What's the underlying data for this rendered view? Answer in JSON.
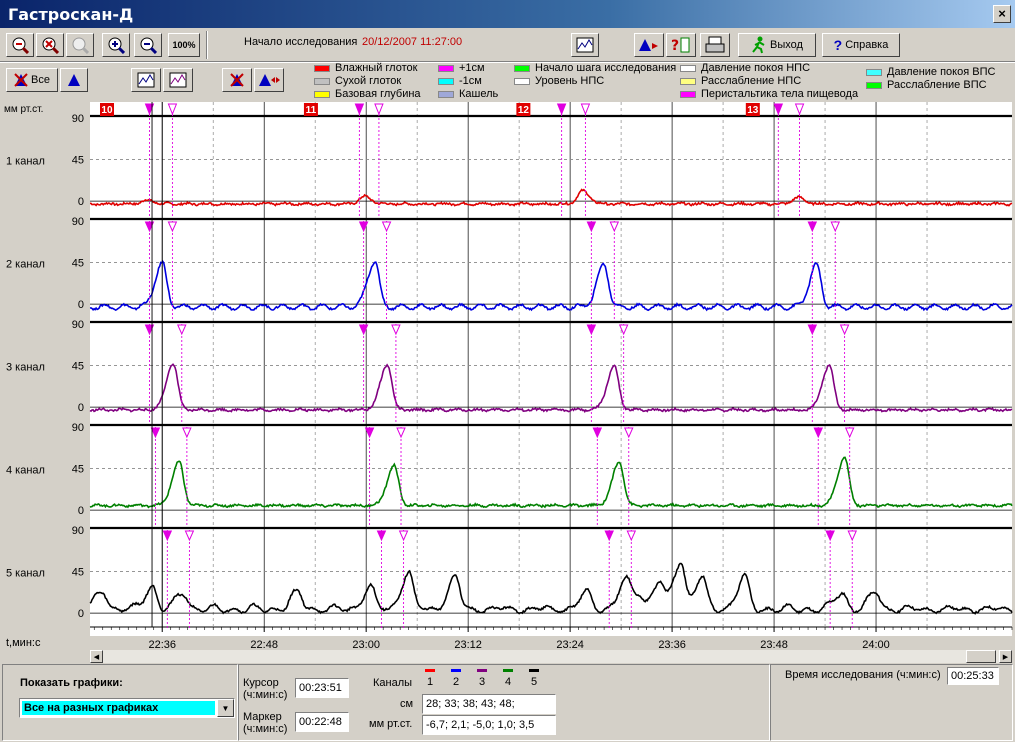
{
  "window": {
    "title": "Гастроскан-Д",
    "close": "×"
  },
  "toolbar": {
    "zoom_buttons": [
      "zoom-in-x",
      "zoom-out-x",
      "zoom-reset",
      "zoom-in-y",
      "zoom-out-y"
    ],
    "zoom_100": "100%",
    "start_label": "Начало исследования",
    "start_value": "20/12/2007 11:27:00",
    "exit_label": "Выход",
    "help_label": "Справка"
  },
  "toolbar2": {
    "all_label": "Все"
  },
  "legend": [
    {
      "label": "Влажный глоток",
      "color": "#ff0000"
    },
    {
      "label": "Сухой глоток",
      "color": "#c0c0c0"
    },
    {
      "label": "Базовая глубина",
      "color": "#ffff00"
    },
    {
      "label": "+1см",
      "color": "#ff00ff"
    },
    {
      "label": "-1см",
      "color": "#00ffff"
    },
    {
      "label": "Кашель",
      "color": "#9fa8d8"
    },
    {
      "label": "Начало шага исследования",
      "color": "#00ff00"
    },
    {
      "label": "Уровень НПС",
      "color": "#ffffff"
    },
    {
      "label": "Давление покоя НПС",
      "color": "#ffffff"
    },
    {
      "label": "Расслабление НПС",
      "color": "#ffff80"
    },
    {
      "label": "Перистальтика тела пищевода",
      "color": "#ff00ff"
    },
    {
      "label": "Давление покоя ВПС",
      "color": "#40ffff"
    },
    {
      "label": "Расслабление ВПС",
      "color": "#00ff00"
    }
  ],
  "chart_data": {
    "type": "line",
    "yunit": "мм рт.ст.",
    "xunit": "t,мин:с",
    "ytick_labels": [
      "90",
      "45",
      "0"
    ],
    "ylim": [
      -15,
      90
    ],
    "xlim_min": [
      -8.5,
      100
    ],
    "x_tick_labels": [
      "22:36",
      "22:48",
      "23:00",
      "23:12",
      "23:24",
      "23:36",
      "23:48",
      "24:00"
    ],
    "x_tick_min": [
      0,
      12,
      24,
      36,
      48,
      60,
      72,
      84
    ],
    "series": [
      {
        "name": "1 канал",
        "color": "#e00000",
        "peaks": [
          [
            -1.8,
            4
          ],
          [
            23.8,
            8
          ],
          [
            49.5,
            14
          ],
          [
            74.8,
            7
          ]
        ],
        "baseline": -3
      },
      {
        "name": "2 канал",
        "color": "#0000e0",
        "peaks": [
          [
            0,
            47
          ],
          [
            25,
            50
          ],
          [
            52,
            46
          ],
          [
            77,
            45
          ]
        ],
        "baseline": -3
      },
      {
        "name": "3 канал",
        "color": "#800080",
        "peaks": [
          [
            1.3,
            50
          ],
          [
            26.5,
            49
          ],
          [
            53.2,
            47
          ],
          [
            78.5,
            48
          ]
        ],
        "baseline": -3
      },
      {
        "name": "4 канал",
        "color": "#008000",
        "peaks": [
          [
            2,
            47
          ],
          [
            27.3,
            43
          ],
          [
            53.8,
            47
          ],
          [
            80.3,
            52
          ]
        ],
        "baseline": 5
      },
      {
        "name": "5 канал",
        "color": "#000000",
        "peaks": [
          [
            -7,
            20
          ],
          [
            -1.2,
            25
          ],
          [
            2.5,
            18
          ],
          [
            16,
            18
          ],
          [
            24.5,
            24
          ],
          [
            29,
            40
          ],
          [
            34.5,
            35
          ],
          [
            50,
            18
          ],
          [
            54.5,
            28
          ],
          [
            56,
            18
          ],
          [
            58.5,
            30
          ],
          [
            61,
            52
          ],
          [
            63.5,
            35
          ],
          [
            68.5,
            35
          ],
          [
            80,
            18
          ],
          [
            84,
            18
          ]
        ],
        "baseline": 3
      }
    ],
    "event_groups": [
      {
        "number": "10",
        "marker_min": -6.5
      },
      {
        "number": "11",
        "marker_min": 17.5
      },
      {
        "number": "12",
        "marker_min": 42.5
      },
      {
        "number": "13",
        "marker_min": 69.5
      }
    ],
    "npk_markers_min": [
      [
        -1.5,
        1.2
      ],
      [
        23.2,
        25.5
      ],
      [
        47,
        49.8
      ],
      [
        72.5,
        75
      ]
    ],
    "channel_markers_min": [
      [
        [
          -1.5,
          1.2
        ]
      ],
      [
        [
          -1.5,
          2.3
        ]
      ],
      [
        [
          -0.8,
          2.9
        ]
      ],
      [
        [
          0.6,
          3.2
        ]
      ]
    ],
    "cursor_min": 0,
    "marker_min": -1.2
  },
  "chart_labels": {
    "y_unit": "мм рт.ст.",
    "x_unit": "t,мин:с",
    "channels": [
      "1 канал",
      "2 канал",
      "3 канал",
      "4 канал",
      "5 канал"
    ]
  },
  "bottom": {
    "show_label": "Показать графики:",
    "show_select": "Все на разных графиках",
    "cursor_label": "Курсор\n(ч:мин:с)",
    "cursor_value": "00:23:51",
    "marker_label": "Маркер\n(ч:мин:с)",
    "marker_value": "00:22:48",
    "channels_label": "Каналы",
    "channel_nums": [
      "1",
      "2",
      "3",
      "4",
      "5"
    ],
    "channel_colors": [
      "#ff0000",
      "#0000ff",
      "#800080",
      "#008000",
      "#000000"
    ],
    "cm_label": "см",
    "cm_value": "28;  33;  38;   43;   48;",
    "mm_label": "мм рт.ст.",
    "mm_value": "-6,7;  2,1;  -5,0;  1,0;  3,5",
    "time_label": "Время исследования (ч:мин:с)",
    "time_value": "00:25:33"
  }
}
